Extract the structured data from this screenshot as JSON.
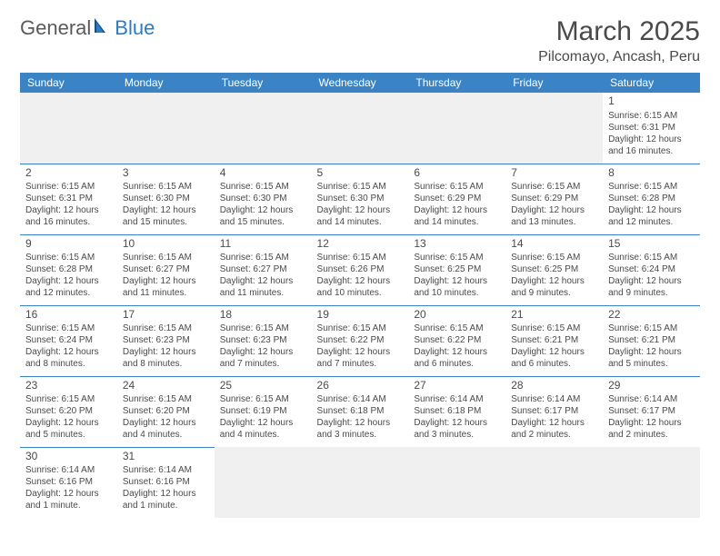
{
  "logo": {
    "part1": "General",
    "part2": "Blue"
  },
  "title": "March 2025",
  "location": "Pilcomayo, Ancash, Peru",
  "days": [
    "Sunday",
    "Monday",
    "Tuesday",
    "Wednesday",
    "Thursday",
    "Friday",
    "Saturday"
  ],
  "colors": {
    "header_bg": "#3a84c5",
    "header_text": "#ffffff",
    "cell_border": "#3a84c5",
    "text": "#4a4a4a",
    "logo_blue": "#2b7cc4",
    "logo_gray": "#5a5a5a",
    "empty_bg": "#f0f0f0"
  },
  "weeks": [
    [
      null,
      null,
      null,
      null,
      null,
      null,
      {
        "n": "1",
        "sr": "Sunrise: 6:15 AM",
        "ss": "Sunset: 6:31 PM",
        "dl": "Daylight: 12 hours and 16 minutes."
      }
    ],
    [
      {
        "n": "2",
        "sr": "Sunrise: 6:15 AM",
        "ss": "Sunset: 6:31 PM",
        "dl": "Daylight: 12 hours and 16 minutes."
      },
      {
        "n": "3",
        "sr": "Sunrise: 6:15 AM",
        "ss": "Sunset: 6:30 PM",
        "dl": "Daylight: 12 hours and 15 minutes."
      },
      {
        "n": "4",
        "sr": "Sunrise: 6:15 AM",
        "ss": "Sunset: 6:30 PM",
        "dl": "Daylight: 12 hours and 15 minutes."
      },
      {
        "n": "5",
        "sr": "Sunrise: 6:15 AM",
        "ss": "Sunset: 6:30 PM",
        "dl": "Daylight: 12 hours and 14 minutes."
      },
      {
        "n": "6",
        "sr": "Sunrise: 6:15 AM",
        "ss": "Sunset: 6:29 PM",
        "dl": "Daylight: 12 hours and 14 minutes."
      },
      {
        "n": "7",
        "sr": "Sunrise: 6:15 AM",
        "ss": "Sunset: 6:29 PM",
        "dl": "Daylight: 12 hours and 13 minutes."
      },
      {
        "n": "8",
        "sr": "Sunrise: 6:15 AM",
        "ss": "Sunset: 6:28 PM",
        "dl": "Daylight: 12 hours and 12 minutes."
      }
    ],
    [
      {
        "n": "9",
        "sr": "Sunrise: 6:15 AM",
        "ss": "Sunset: 6:28 PM",
        "dl": "Daylight: 12 hours and 12 minutes."
      },
      {
        "n": "10",
        "sr": "Sunrise: 6:15 AM",
        "ss": "Sunset: 6:27 PM",
        "dl": "Daylight: 12 hours and 11 minutes."
      },
      {
        "n": "11",
        "sr": "Sunrise: 6:15 AM",
        "ss": "Sunset: 6:27 PM",
        "dl": "Daylight: 12 hours and 11 minutes."
      },
      {
        "n": "12",
        "sr": "Sunrise: 6:15 AM",
        "ss": "Sunset: 6:26 PM",
        "dl": "Daylight: 12 hours and 10 minutes."
      },
      {
        "n": "13",
        "sr": "Sunrise: 6:15 AM",
        "ss": "Sunset: 6:25 PM",
        "dl": "Daylight: 12 hours and 10 minutes."
      },
      {
        "n": "14",
        "sr": "Sunrise: 6:15 AM",
        "ss": "Sunset: 6:25 PM",
        "dl": "Daylight: 12 hours and 9 minutes."
      },
      {
        "n": "15",
        "sr": "Sunrise: 6:15 AM",
        "ss": "Sunset: 6:24 PM",
        "dl": "Daylight: 12 hours and 9 minutes."
      }
    ],
    [
      {
        "n": "16",
        "sr": "Sunrise: 6:15 AM",
        "ss": "Sunset: 6:24 PM",
        "dl": "Daylight: 12 hours and 8 minutes."
      },
      {
        "n": "17",
        "sr": "Sunrise: 6:15 AM",
        "ss": "Sunset: 6:23 PM",
        "dl": "Daylight: 12 hours and 8 minutes."
      },
      {
        "n": "18",
        "sr": "Sunrise: 6:15 AM",
        "ss": "Sunset: 6:23 PM",
        "dl": "Daylight: 12 hours and 7 minutes."
      },
      {
        "n": "19",
        "sr": "Sunrise: 6:15 AM",
        "ss": "Sunset: 6:22 PM",
        "dl": "Daylight: 12 hours and 7 minutes."
      },
      {
        "n": "20",
        "sr": "Sunrise: 6:15 AM",
        "ss": "Sunset: 6:22 PM",
        "dl": "Daylight: 12 hours and 6 minutes."
      },
      {
        "n": "21",
        "sr": "Sunrise: 6:15 AM",
        "ss": "Sunset: 6:21 PM",
        "dl": "Daylight: 12 hours and 6 minutes."
      },
      {
        "n": "22",
        "sr": "Sunrise: 6:15 AM",
        "ss": "Sunset: 6:21 PM",
        "dl": "Daylight: 12 hours and 5 minutes."
      }
    ],
    [
      {
        "n": "23",
        "sr": "Sunrise: 6:15 AM",
        "ss": "Sunset: 6:20 PM",
        "dl": "Daylight: 12 hours and 5 minutes."
      },
      {
        "n": "24",
        "sr": "Sunrise: 6:15 AM",
        "ss": "Sunset: 6:20 PM",
        "dl": "Daylight: 12 hours and 4 minutes."
      },
      {
        "n": "25",
        "sr": "Sunrise: 6:15 AM",
        "ss": "Sunset: 6:19 PM",
        "dl": "Daylight: 12 hours and 4 minutes."
      },
      {
        "n": "26",
        "sr": "Sunrise: 6:14 AM",
        "ss": "Sunset: 6:18 PM",
        "dl": "Daylight: 12 hours and 3 minutes."
      },
      {
        "n": "27",
        "sr": "Sunrise: 6:14 AM",
        "ss": "Sunset: 6:18 PM",
        "dl": "Daylight: 12 hours and 3 minutes."
      },
      {
        "n": "28",
        "sr": "Sunrise: 6:14 AM",
        "ss": "Sunset: 6:17 PM",
        "dl": "Daylight: 12 hours and 2 minutes."
      },
      {
        "n": "29",
        "sr": "Sunrise: 6:14 AM",
        "ss": "Sunset: 6:17 PM",
        "dl": "Daylight: 12 hours and 2 minutes."
      }
    ],
    [
      {
        "n": "30",
        "sr": "Sunrise: 6:14 AM",
        "ss": "Sunset: 6:16 PM",
        "dl": "Daylight: 12 hours and 1 minute."
      },
      {
        "n": "31",
        "sr": "Sunrise: 6:14 AM",
        "ss": "Sunset: 6:16 PM",
        "dl": "Daylight: 12 hours and 1 minute."
      },
      null,
      null,
      null,
      null,
      null
    ]
  ]
}
